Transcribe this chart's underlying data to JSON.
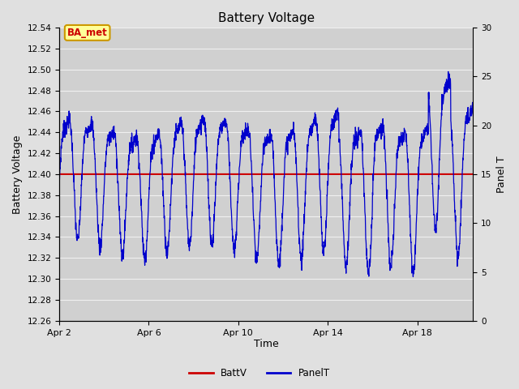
{
  "title": "Battery Voltage",
  "xlabel": "Time",
  "ylabel_left": "Battery Voltage",
  "ylabel_right": "Panel T",
  "ylim_left": [
    12.26,
    12.54
  ],
  "ylim_right": [
    0,
    30
  ],
  "xlim": [
    0,
    18.5
  ],
  "xtick_positions": [
    0,
    4,
    8,
    12,
    16
  ],
  "xtick_labels": [
    "Apr 2",
    "Apr 6",
    "Apr 10",
    "Apr 14",
    "Apr 18"
  ],
  "yticks_left": [
    12.26,
    12.28,
    12.3,
    12.32,
    12.34,
    12.36,
    12.38,
    12.4,
    12.42,
    12.44,
    12.46,
    12.48,
    12.5,
    12.52,
    12.54
  ],
  "yticks_right": [
    0,
    5,
    10,
    15,
    20,
    25,
    30
  ],
  "batt_v": 12.4,
  "batt_color": "#cc0000",
  "panel_color": "#0000cc",
  "bg_color": "#e0e0e0",
  "plot_bg_color": "#d0d0d0",
  "grid_color": "#f0f0f0",
  "label_box_color": "#ffff99",
  "label_box_edge_color": "#cc9900",
  "label_text": "BA_met",
  "label_text_color": "#cc0000",
  "legend_labels": [
    "BattV",
    "PanelT"
  ],
  "legend_colors": [
    "#cc0000",
    "#0000cc"
  ]
}
